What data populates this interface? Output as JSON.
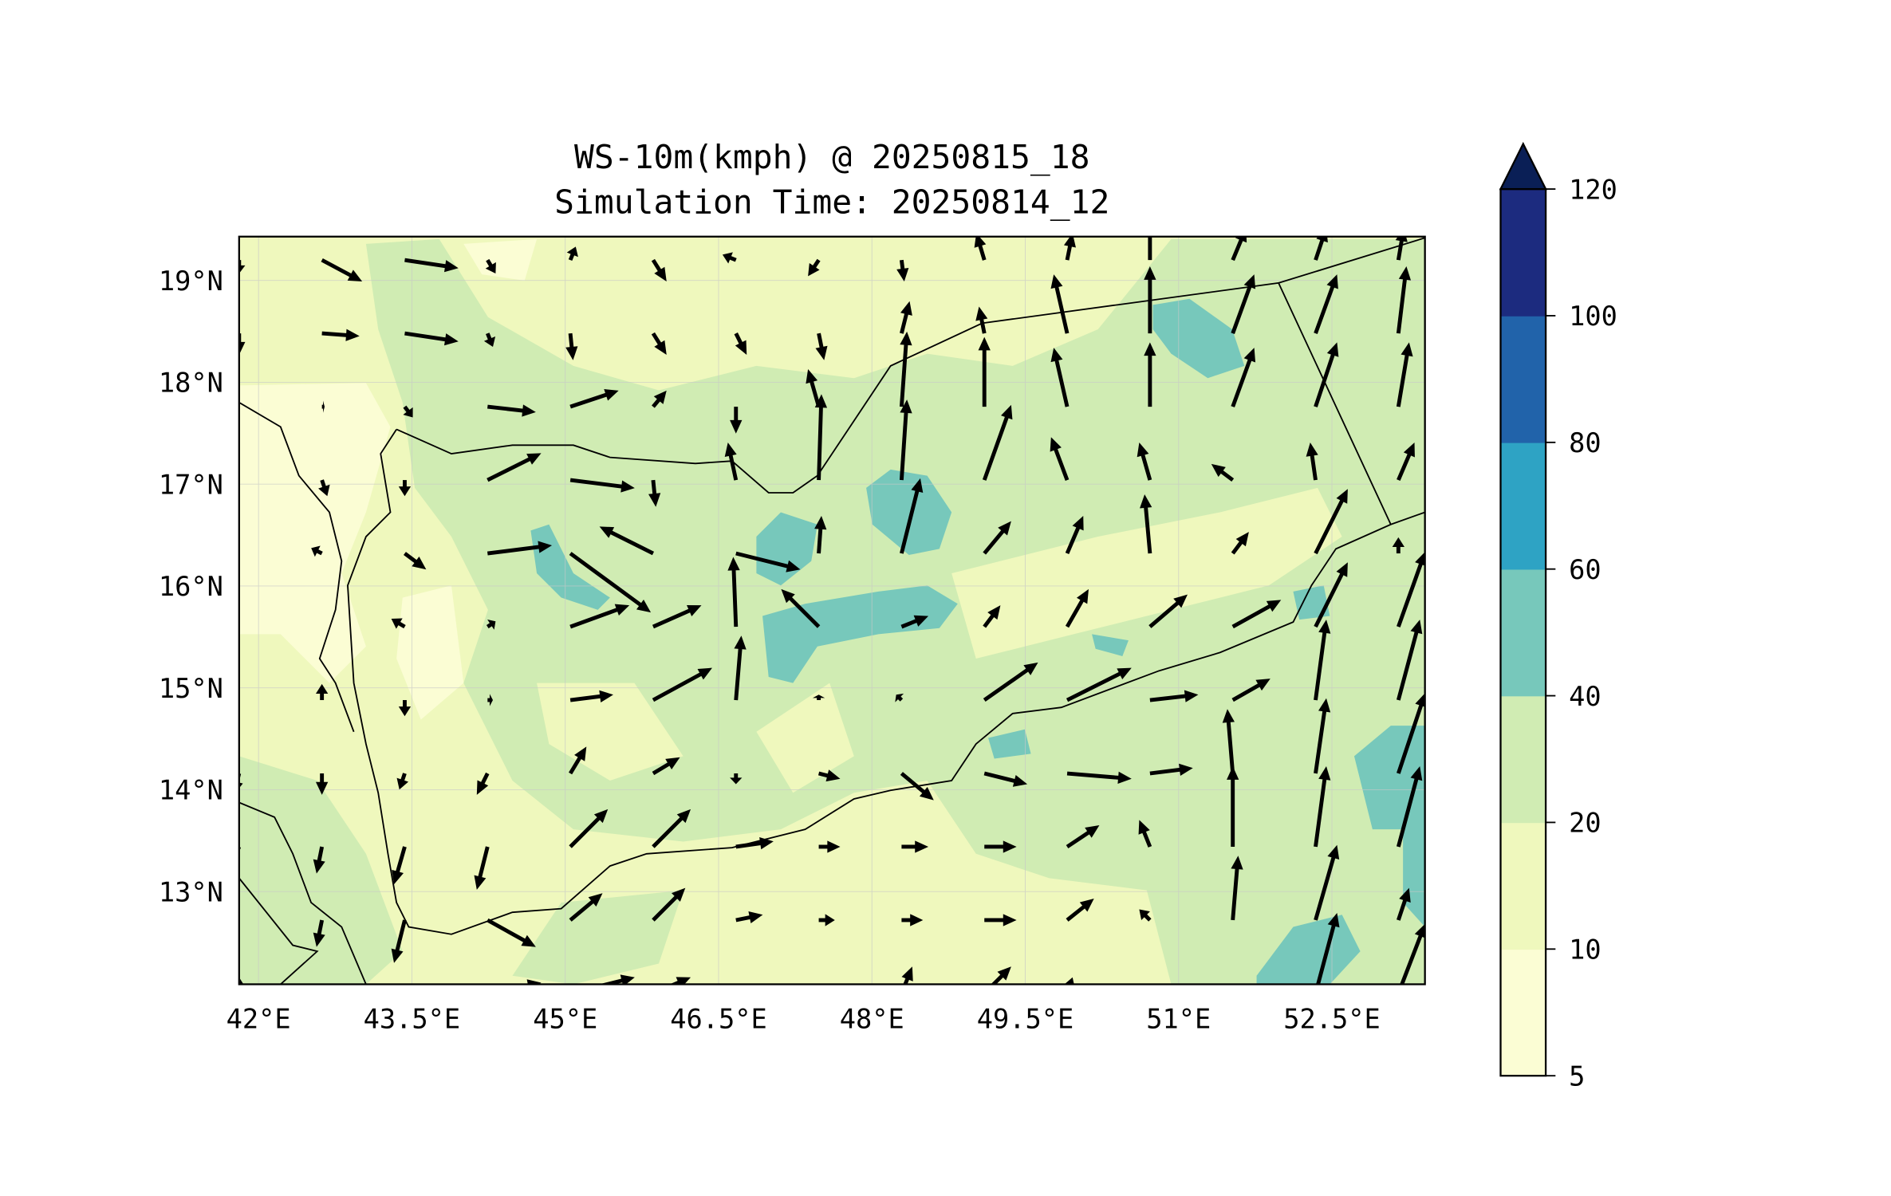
{
  "chart_data": {
    "type": "heatmap",
    "subtype": "filled-contour map with wind vectors",
    "title": "WS-10m(kmph) @ 20250815_18",
    "subtitle": "Simulation Time: 20250814_12",
    "xlim": [
      41.81,
      53.41
    ],
    "ylim": [
      12.09,
      19.43
    ],
    "x_ticks": [
      42,
      43.5,
      45,
      46.5,
      48,
      49.5,
      51,
      52.5
    ],
    "x_tick_labels": [
      "42°E",
      "43.5°E",
      "45°E",
      "46.5°E",
      "48°E",
      "49.5°E",
      "51°E",
      "52.5°E"
    ],
    "y_ticks": [
      13,
      14,
      15,
      16,
      17,
      18,
      19
    ],
    "y_tick_labels": [
      "13°N",
      "14°N",
      "15°N",
      "16°N",
      "17°N",
      "18°N",
      "19°N"
    ],
    "grid": true,
    "colorbar": {
      "placement": "right",
      "extend": "max",
      "levels": [
        5,
        10,
        20,
        40,
        60,
        80,
        100,
        120
      ],
      "level_labels": [
        "5",
        "10",
        "20",
        "40",
        "60",
        "80",
        "100",
        "120"
      ],
      "colors": [
        "#fbfdd4",
        "#eff8bd",
        "#d0ecb3",
        "#77c8bb",
        "#2ea3c4",
        "#2163aa",
        "#1c2b7f",
        "#0a1f56"
      ]
    },
    "vector_grid": {
      "lon0": 41.81,
      "dlon": 0.81,
      "lat0": 19.2,
      "dlat": 0.72,
      "units": "kmph",
      "rows": [
        [
          [
            0,
            -5
          ],
          [
            15,
            -8
          ],
          [
            20,
            -3
          ],
          [
            3,
            -5
          ],
          [
            2,
            5
          ],
          [
            5,
            -8
          ],
          [
            -5,
            2
          ],
          [
            -4,
            -6
          ],
          [
            1,
            -8
          ],
          [
            -3,
            10
          ],
          [
            2,
            10
          ],
          [
            0,
            40
          ],
          [
            5,
            12
          ],
          [
            4,
            12
          ],
          [
            2,
            12
          ]
        ],
        [
          [
            0,
            -8
          ],
          [
            14,
            -1
          ],
          [
            20,
            -3
          ],
          [
            2,
            -5
          ],
          [
            1,
            -10
          ],
          [
            5,
            -8
          ],
          [
            4,
            -8
          ],
          [
            2,
            -10
          ],
          [
            3,
            12
          ],
          [
            -2,
            10
          ],
          [
            -5,
            22
          ],
          [
            0,
            25
          ],
          [
            8,
            22
          ],
          [
            8,
            22
          ],
          [
            3,
            25
          ]
        ],
        [
          [
            0,
            0
          ],
          [
            1,
            0
          ],
          [
            3,
            -4
          ],
          [
            18,
            -2
          ],
          [
            18,
            6
          ],
          [
            5,
            6
          ],
          [
            0,
            -10
          ],
          [
            -4,
            14
          ],
          [
            2,
            28
          ],
          [
            0,
            26
          ],
          [
            -5,
            22
          ],
          [
            0,
            24
          ],
          [
            8,
            22
          ],
          [
            8,
            24
          ],
          [
            4,
            24
          ]
        ],
        [
          [
            0,
            0
          ],
          [
            2,
            -6
          ],
          [
            0,
            -6
          ],
          [
            20,
            10
          ],
          [
            24,
            -3
          ],
          [
            1,
            -10
          ],
          [
            -3,
            14
          ],
          [
            1,
            32
          ],
          [
            2,
            30
          ],
          [
            10,
            28
          ],
          [
            -6,
            16
          ],
          [
            -4,
            14
          ],
          [
            -8,
            6
          ],
          [
            -2,
            14
          ],
          [
            6,
            14
          ]
        ],
        [
          [
            0,
            0
          ],
          [
            -4,
            2
          ],
          [
            8,
            -6
          ],
          [
            24,
            3
          ],
          [
            30,
            -22
          ],
          [
            -20,
            10
          ],
          [
            24,
            -6
          ],
          [
            1,
            14
          ],
          [
            7,
            28
          ],
          [
            10,
            12
          ],
          [
            6,
            14
          ],
          [
            -2,
            22
          ],
          [
            6,
            8
          ],
          [
            12,
            24
          ],
          [
            0,
            6
          ]
        ],
        [
          [
            0,
            0
          ],
          [
            0,
            0
          ],
          [
            -5,
            3
          ],
          [
            3,
            2
          ],
          [
            22,
            8
          ],
          [
            18,
            8
          ],
          [
            -1,
            26
          ],
          [
            -14,
            14
          ],
          [
            10,
            4
          ],
          [
            6,
            8
          ],
          [
            8,
            14
          ],
          [
            14,
            12
          ],
          [
            18,
            10
          ],
          [
            12,
            24
          ],
          [
            10,
            28
          ]
        ],
        [
          [
            0,
            0
          ],
          [
            0,
            6
          ],
          [
            0,
            -6
          ],
          [
            2,
            0
          ],
          [
            16,
            2
          ],
          [
            22,
            12
          ],
          [
            2,
            24
          ],
          [
            0,
            2
          ],
          [
            -2,
            2
          ],
          [
            20,
            14
          ],
          [
            24,
            12
          ],
          [
            18,
            2
          ],
          [
            14,
            8
          ],
          [
            4,
            30
          ],
          [
            8,
            30
          ]
        ],
        [
          [
            -2,
            -8
          ],
          [
            0,
            -8
          ],
          [
            -2,
            -6
          ],
          [
            -4,
            -8
          ],
          [
            6,
            10
          ],
          [
            10,
            6
          ],
          [
            0,
            -4
          ],
          [
            8,
            -2
          ],
          [
            12,
            -10
          ],
          [
            16,
            -4
          ],
          [
            24,
            -2
          ],
          [
            16,
            2
          ],
          [
            -2,
            24
          ],
          [
            4,
            28
          ],
          [
            10,
            30
          ]
        ],
        [
          [
            -6,
            -14
          ],
          [
            -2,
            -10
          ],
          [
            -4,
            -14
          ],
          [
            -4,
            -16
          ],
          [
            14,
            14
          ],
          [
            14,
            14
          ],
          [
            14,
            2
          ],
          [
            8,
            0
          ],
          [
            10,
            0
          ],
          [
            12,
            0
          ],
          [
            12,
            8
          ],
          [
            -4,
            10
          ],
          [
            0,
            30
          ],
          [
            4,
            30
          ],
          [
            8,
            30
          ]
        ],
        [
          [
            0,
            0
          ],
          [
            -2,
            -10
          ],
          [
            -4,
            -16
          ],
          [
            18,
            -10
          ],
          [
            12,
            10
          ],
          [
            12,
            12
          ],
          [
            10,
            2
          ],
          [
            6,
            0
          ],
          [
            8,
            0
          ],
          [
            12,
            0
          ],
          [
            10,
            8
          ],
          [
            -4,
            4
          ],
          [
            2,
            24
          ],
          [
            8,
            28
          ],
          [
            4,
            12
          ]
        ],
        [
          [
            0,
            6
          ],
          [
            10,
            0
          ],
          [
            0,
            0
          ],
          [
            20,
            4
          ],
          [
            24,
            6
          ],
          [
            14,
            6
          ],
          [
            12,
            2
          ],
          [
            12,
            2
          ],
          [
            4,
            10
          ],
          [
            10,
            10
          ],
          [
            2,
            6
          ],
          [
            0,
            0
          ],
          [
            0,
            0
          ],
          [
            8,
            30
          ],
          [
            10,
            26
          ]
        ]
      ]
    }
  }
}
